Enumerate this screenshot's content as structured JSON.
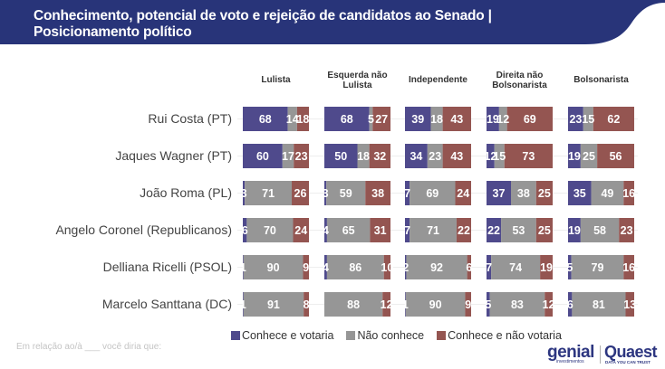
{
  "header": {
    "title_line1": "Conhecimento, potencial de voto e rejeição de candidatos ao Senado |",
    "title_line2": "Posicionamento político",
    "color": "#283479"
  },
  "footnote": "Em relação ao/à ___ você diria que:",
  "logos": {
    "genial": "genial",
    "genial_sub": "investimentos",
    "quaest": "Quaest",
    "quaest_sub": "DATA YOU CAN TRUST"
  },
  "chart_data": {
    "type": "bar",
    "subtype": "small-multiples-stacked-horizontal-100",
    "title": "Conhecimento, potencial de voto e rejeição de candidatos ao Senado | Posicionamento político",
    "xlabel": "",
    "ylabel": "",
    "unit": "%",
    "xlim": [
      0,
      100
    ],
    "grid": false,
    "legend_position": "bottom-center",
    "panels": [
      "Lulista",
      "Esquerda não Lulista",
      "Independente",
      "Direita não Bolsonarista",
      "Bolsonarista"
    ],
    "panel_labels": [
      [
        "Lulista"
      ],
      [
        "Esquerda não",
        "Lulista"
      ],
      [
        "Independente"
      ],
      [
        "Direita não",
        "Bolsonarista"
      ],
      [
        "Bolsonarista"
      ]
    ],
    "categories": [
      "Rui Costa (PT)",
      "Jaques Wagner (PT)",
      "João Roma (PL)",
      "Angelo Coronel (Republicanos)",
      "Delliana Ricelli (PSOL)",
      "Marcelo Santtana (DC)"
    ],
    "series": [
      {
        "name": "Conhece e votaria",
        "color": "#4f4a8c",
        "values": [
          [
            68,
            68,
            39,
            19,
            23
          ],
          [
            60,
            50,
            34,
            12,
            19
          ],
          [
            3,
            3,
            7,
            37,
            35
          ],
          [
            6,
            4,
            7,
            22,
            19
          ],
          [
            1,
            4,
            2,
            7,
            5
          ],
          [
            1,
            0,
            1,
            5,
            6
          ]
        ]
      },
      {
        "name": "Não conhece",
        "color": "#969696",
        "values": [
          [
            14,
            5,
            18,
            12,
            15
          ],
          [
            17,
            18,
            23,
            15,
            25
          ],
          [
            71,
            59,
            69,
            38,
            49
          ],
          [
            70,
            65,
            71,
            53,
            58
          ],
          [
            90,
            86,
            92,
            74,
            79
          ],
          [
            91,
            88,
            90,
            83,
            81
          ]
        ]
      },
      {
        "name": "Conhece e não votaria",
        "color": "#945551",
        "values": [
          [
            18,
            27,
            43,
            69,
            62
          ],
          [
            23,
            32,
            43,
            73,
            56
          ],
          [
            26,
            38,
            24,
            25,
            16
          ],
          [
            24,
            31,
            22,
            25,
            23
          ],
          [
            9,
            10,
            6,
            19,
            16
          ],
          [
            8,
            12,
            9,
            12,
            13
          ]
        ]
      }
    ]
  }
}
